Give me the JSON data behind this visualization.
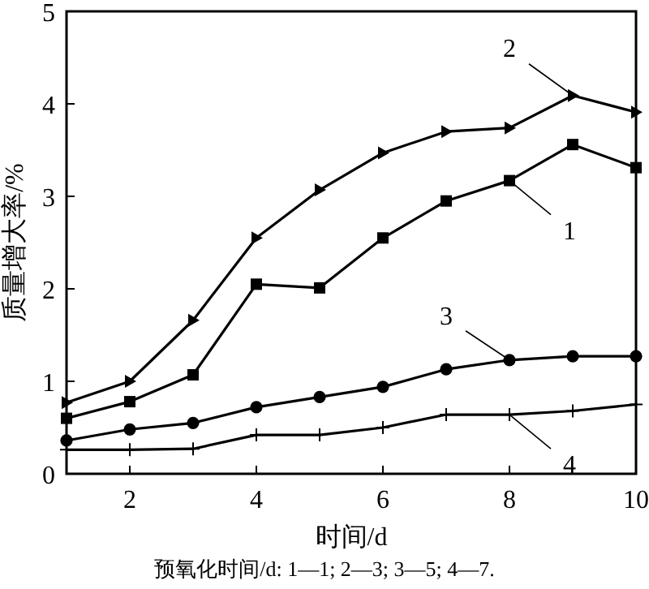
{
  "chart_data": {
    "type": "line",
    "xlabel": "时间/d",
    "ylabel": "质量增大率/%",
    "x": [
      1,
      2,
      3,
      4,
      5,
      6,
      7,
      8,
      9,
      10
    ],
    "xlim": [
      1,
      10
    ],
    "xticks": [
      2,
      4,
      6,
      8,
      10
    ],
    "ylim": [
      0,
      5
    ],
    "yticks": [
      0,
      1,
      2,
      3,
      4,
      5
    ],
    "grid": false,
    "series": [
      {
        "name": "1",
        "color": "#000000",
        "marker": "square",
        "values": [
          0.6,
          0.78,
          1.07,
          2.05,
          2.01,
          2.55,
          2.95,
          3.17,
          3.56,
          3.31
        ]
      },
      {
        "name": "2",
        "color": "#000000",
        "marker": "triangle",
        "values": [
          0.77,
          1.0,
          1.66,
          2.55,
          3.07,
          3.47,
          3.7,
          3.74,
          4.09,
          3.91
        ]
      },
      {
        "name": "3",
        "color": "#000000",
        "marker": "circle",
        "values": [
          0.36,
          0.48,
          0.55,
          0.72,
          0.83,
          0.94,
          1.13,
          1.23,
          1.27,
          1.27
        ]
      },
      {
        "name": "4",
        "color": "#000000",
        "marker": "cross",
        "values": [
          0.26,
          0.26,
          0.27,
          0.42,
          0.42,
          0.5,
          0.64,
          0.64,
          0.68,
          0.75
        ]
      }
    ],
    "annotations": [
      "预氧化时间/d: 1—1; 2—3; 3—5; 4—7."
    ]
  }
}
